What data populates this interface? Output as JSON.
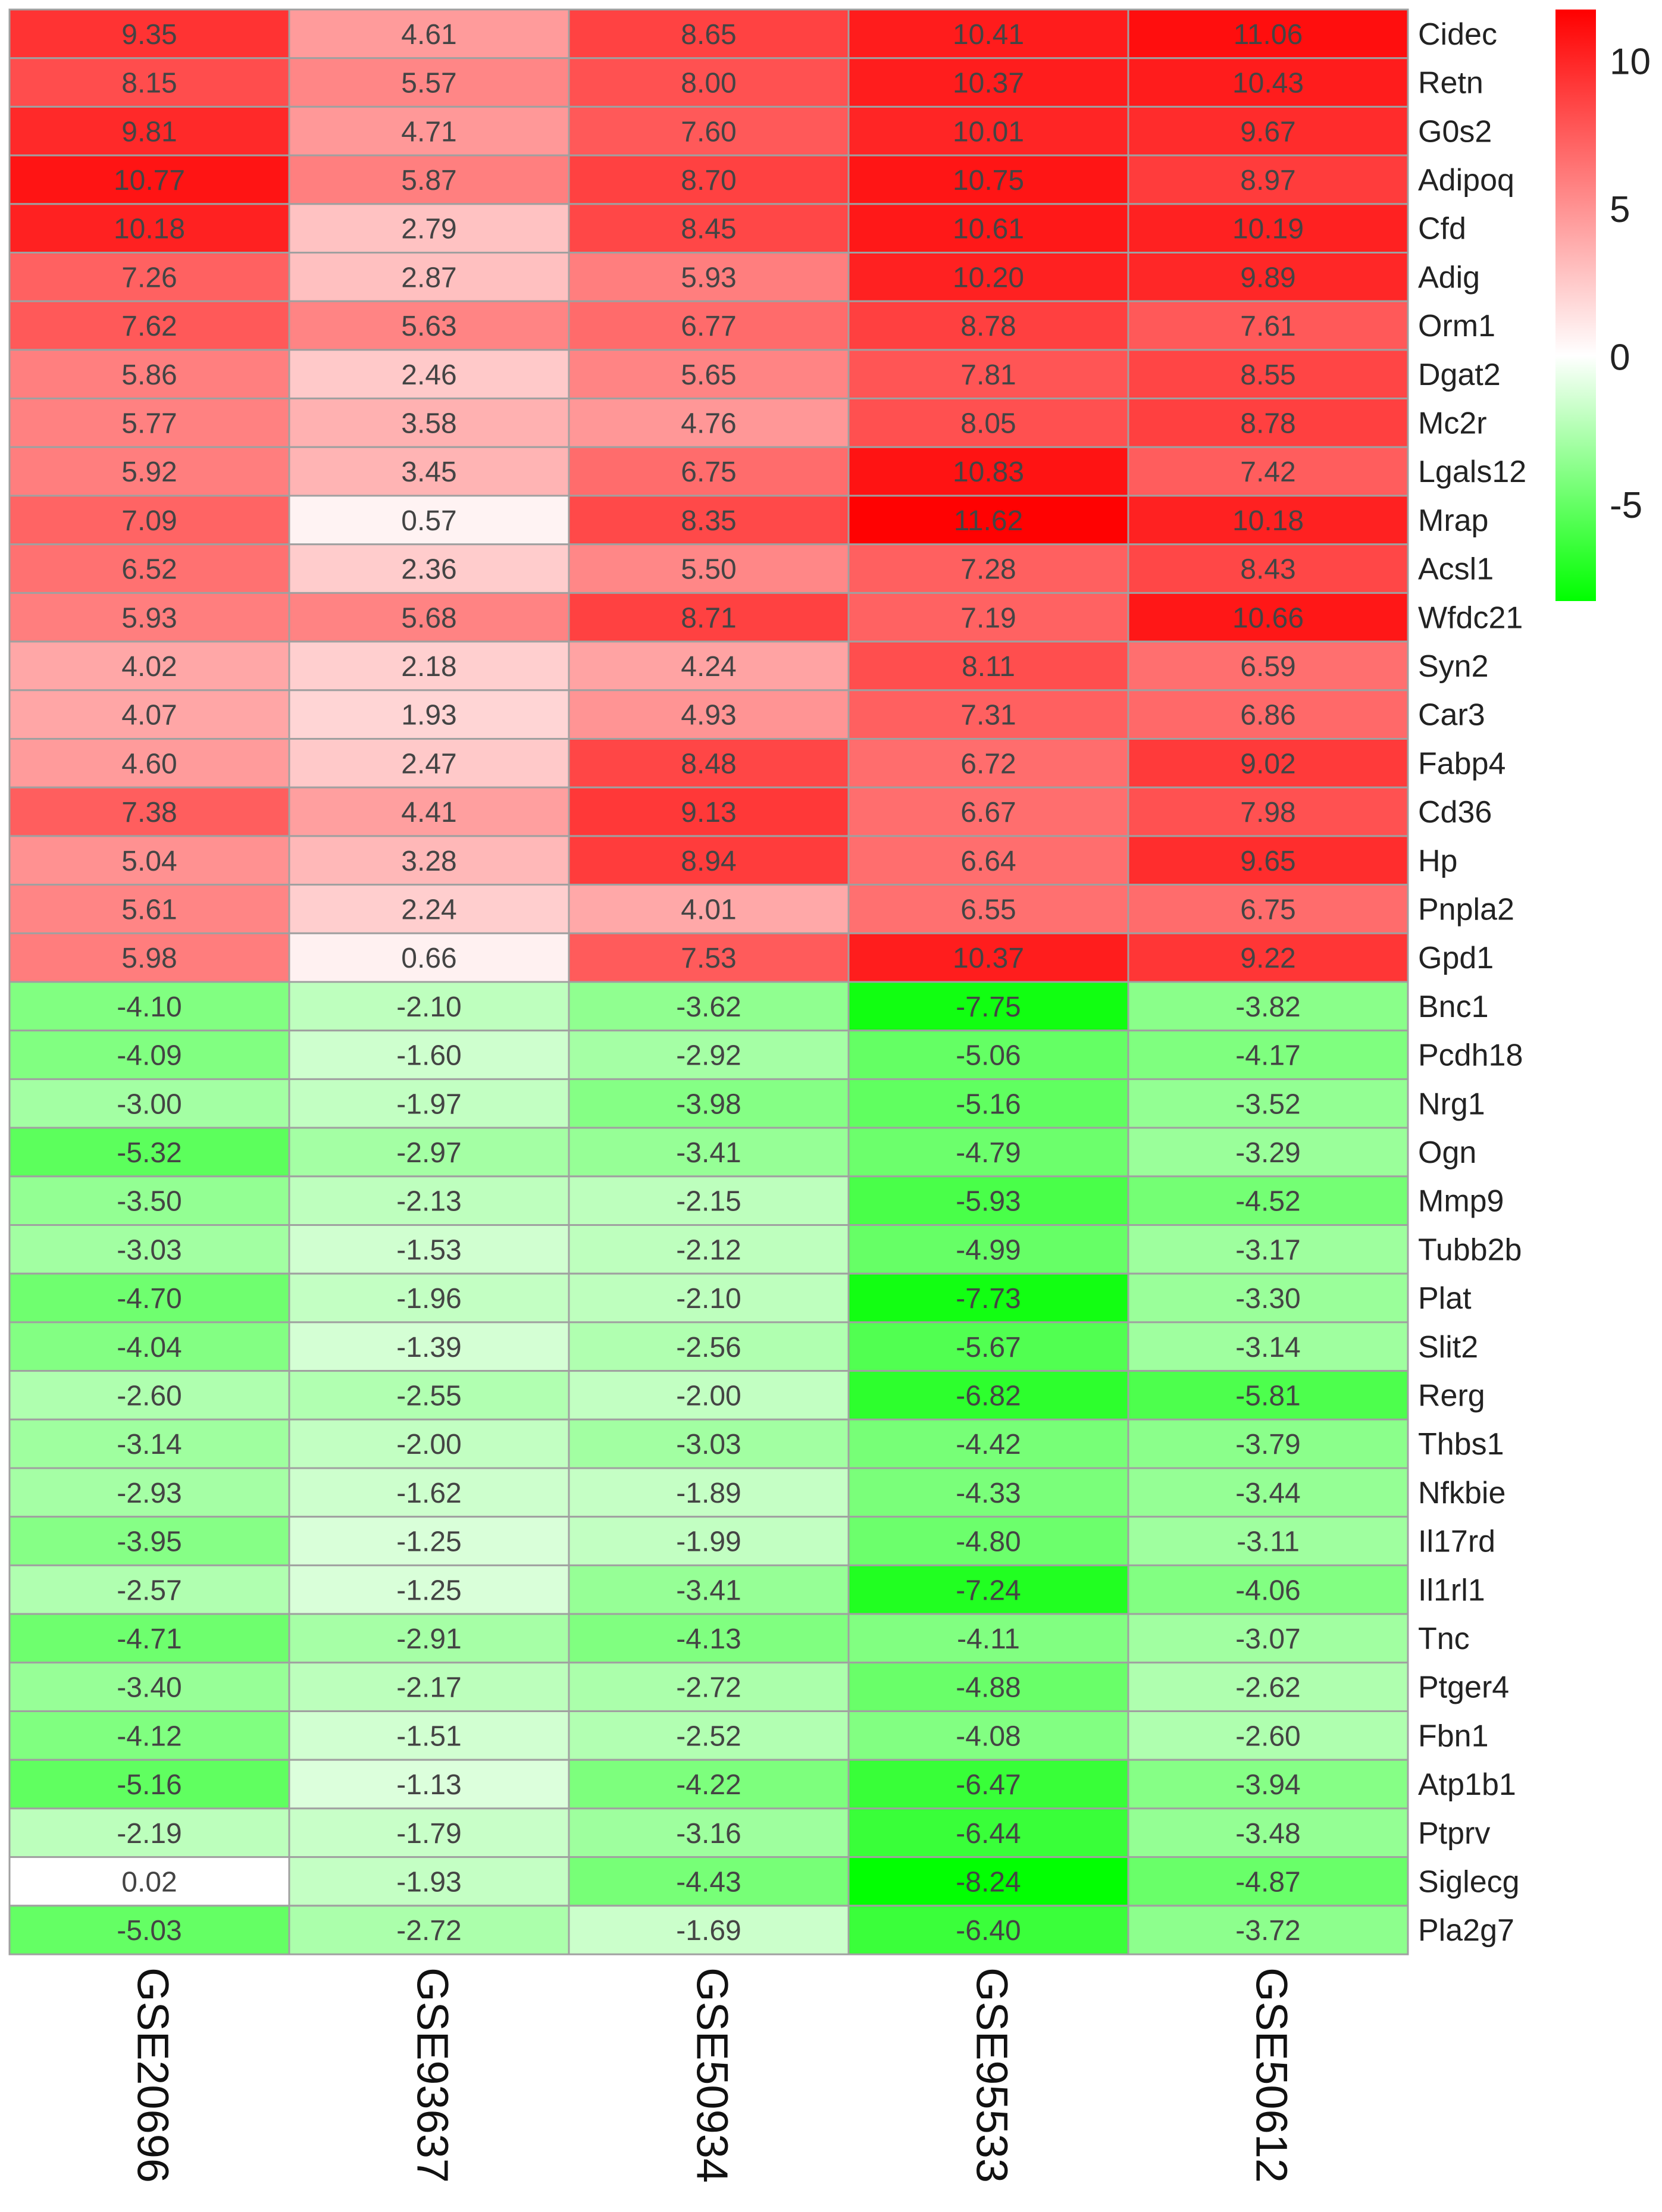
{
  "chart_data": {
    "type": "heatmap",
    "columns": [
      "GSE20696",
      "GSE93637",
      "GSE50934",
      "GSE95533",
      "GSE50612"
    ],
    "rows": [
      "Cidec",
      "Retn",
      "G0s2",
      "Adipoq",
      "Cfd",
      "Adig",
      "Orm1",
      "Dgat2",
      "Mc2r",
      "Lgals12",
      "Mrap",
      "Acsl1",
      "Wfdc21",
      "Syn2",
      "Car3",
      "Fabp4",
      "Cd36",
      "Hp",
      "Pnpla2",
      "Gpd1",
      "Bnc1",
      "Pcdh18",
      "Nrg1",
      "Ogn",
      "Mmp9",
      "Tubb2b",
      "Plat",
      "Slit2",
      "Rerg",
      "Thbs1",
      "Nfkbie",
      "Il17rd",
      "Il1rl1",
      "Tnc",
      "Ptger4",
      "Fbn1",
      "Atp1b1",
      "Ptprv",
      "Siglecg",
      "Pla2g7"
    ],
    "values": [
      [
        9.35,
        4.61,
        8.65,
        10.41,
        11.06
      ],
      [
        8.15,
        5.57,
        8.0,
        10.37,
        10.43
      ],
      [
        9.81,
        4.71,
        7.6,
        10.01,
        9.67
      ],
      [
        10.77,
        5.87,
        8.7,
        10.75,
        8.97
      ],
      [
        10.18,
        2.79,
        8.45,
        10.61,
        10.19
      ],
      [
        7.26,
        2.87,
        5.93,
        10.2,
        9.89
      ],
      [
        7.62,
        5.63,
        6.77,
        8.78,
        7.61
      ],
      [
        5.86,
        2.46,
        5.65,
        7.81,
        8.55
      ],
      [
        5.77,
        3.58,
        4.76,
        8.05,
        8.78
      ],
      [
        5.92,
        3.45,
        6.75,
        10.83,
        7.42
      ],
      [
        7.09,
        0.57,
        8.35,
        11.62,
        10.18
      ],
      [
        6.52,
        2.36,
        5.5,
        7.28,
        8.43
      ],
      [
        5.93,
        5.68,
        8.71,
        7.19,
        10.66
      ],
      [
        4.02,
        2.18,
        4.24,
        8.11,
        6.59
      ],
      [
        4.07,
        1.93,
        4.93,
        7.31,
        6.86
      ],
      [
        4.6,
        2.47,
        8.48,
        6.72,
        9.02
      ],
      [
        7.38,
        4.41,
        9.13,
        6.67,
        7.98
      ],
      [
        5.04,
        3.28,
        8.94,
        6.64,
        9.65
      ],
      [
        5.61,
        2.24,
        4.01,
        6.55,
        6.75
      ],
      [
        5.98,
        0.66,
        7.53,
        10.37,
        9.22
      ],
      [
        -4.1,
        -2.1,
        -3.62,
        -7.75,
        -3.82
      ],
      [
        -4.09,
        -1.6,
        -2.92,
        -5.06,
        -4.17
      ],
      [
        -3.0,
        -1.97,
        -3.98,
        -5.16,
        -3.52
      ],
      [
        -5.32,
        -2.97,
        -3.41,
        -4.79,
        -3.29
      ],
      [
        -3.5,
        -2.13,
        -2.15,
        -5.93,
        -4.52
      ],
      [
        -3.03,
        -1.53,
        -2.12,
        -4.99,
        -3.17
      ],
      [
        -4.7,
        -1.96,
        -2.1,
        -7.73,
        -3.3
      ],
      [
        -4.04,
        -1.39,
        -2.56,
        -5.67,
        -3.14
      ],
      [
        -2.6,
        -2.55,
        -2.0,
        -6.82,
        -5.81
      ],
      [
        -3.14,
        -2.0,
        -3.03,
        -4.42,
        -3.79
      ],
      [
        -2.93,
        -1.62,
        -1.89,
        -4.33,
        -3.44
      ],
      [
        -3.95,
        -1.25,
        -1.99,
        -4.8,
        -3.11
      ],
      [
        -2.57,
        -1.25,
        -3.41,
        -7.24,
        -4.06
      ],
      [
        -4.71,
        -2.91,
        -4.13,
        -4.11,
        -3.07
      ],
      [
        -3.4,
        -2.17,
        -2.72,
        -4.88,
        -2.62
      ],
      [
        -4.12,
        -1.51,
        -2.52,
        -4.08,
        -2.6
      ],
      [
        -5.16,
        -1.13,
        -4.22,
        -6.47,
        -3.94
      ],
      [
        -2.19,
        -1.79,
        -3.16,
        -6.44,
        -3.48
      ],
      [
        0.02,
        -1.93,
        -4.43,
        -8.24,
        -4.87
      ],
      [
        -5.03,
        -2.72,
        -1.69,
        -6.4,
        -3.72
      ]
    ],
    "color_scale": {
      "min": -8.3,
      "max": 11.7,
      "low_color": "#00ff00",
      "mid_color": "#ffffff",
      "high_color": "#ff0000",
      "mid_value": 0
    },
    "colorbar_ticks": [
      10,
      5,
      0,
      -5
    ],
    "legend_placement": "top-right"
  }
}
